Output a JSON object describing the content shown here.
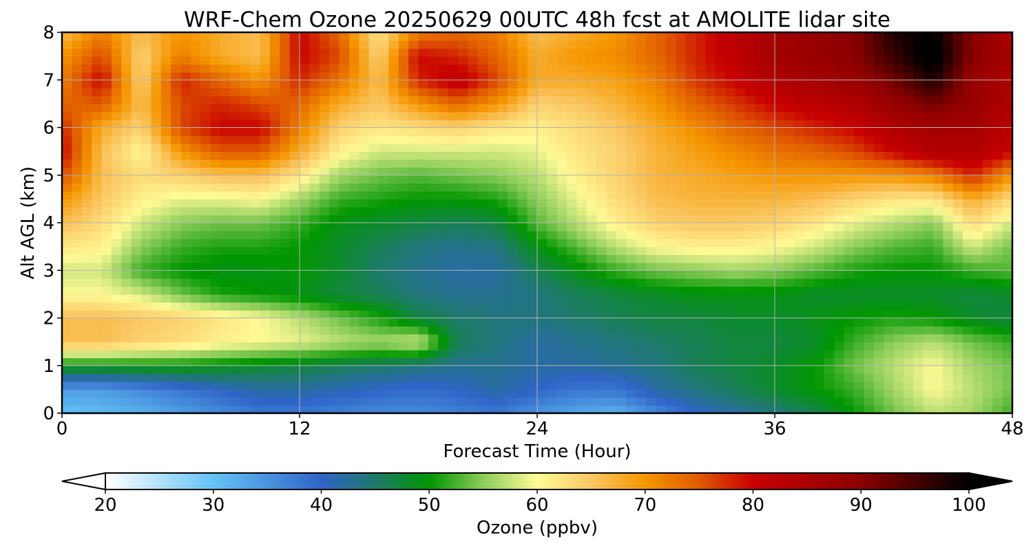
{
  "chart_data": {
    "type": "heatmap",
    "title": "WRF-Chem Ozone  20250629 00UTC 48h fcst at AMOLITE lidar site",
    "xlabel": "Forecast Time (Hour)",
    "ylabel": "Alt AGL (km)",
    "xlim": [
      0,
      48
    ],
    "ylim": [
      0,
      8
    ],
    "x_ticks": [
      "0",
      "12",
      "24",
      "36",
      "48"
    ],
    "y_ticks": [
      "0",
      "1",
      "2",
      "3",
      "4",
      "5",
      "6",
      "7",
      "8"
    ],
    "grid": true,
    "x": [
      0,
      2,
      4,
      6,
      8,
      10,
      12,
      14,
      16,
      18,
      20,
      22,
      24,
      26,
      28,
      30,
      32,
      34,
      36,
      38,
      40,
      42,
      44,
      46,
      48
    ],
    "y": [
      0,
      0.5,
      1,
      1.5,
      2,
      2.5,
      3,
      3.5,
      4,
      4.5,
      5,
      5.5,
      6,
      6.5,
      7,
      7.5,
      8
    ],
    "z_rows_by_altitude": [
      [
        30,
        31,
        32,
        34,
        36,
        38,
        38,
        37,
        36,
        36,
        37,
        38,
        35,
        33,
        32,
        36,
        40,
        42,
        44,
        46,
        50,
        54,
        57,
        56,
        52
      ],
      [
        34,
        34,
        36,
        38,
        40,
        42,
        42,
        41,
        40,
        39,
        40,
        42,
        40,
        38,
        38,
        42,
        44,
        46,
        48,
        50,
        52,
        56,
        60,
        57,
        54
      ],
      [
        50,
        50,
        50,
        50,
        49,
        48,
        47,
        46,
        45,
        44,
        43,
        43,
        42,
        42,
        43,
        44,
        46,
        47,
        48,
        50,
        54,
        57,
        60,
        56,
        54
      ],
      [
        66,
        66,
        64,
        63,
        61,
        60,
        59,
        57,
        56,
        58,
        46,
        44,
        42,
        43,
        44,
        45,
        46,
        47,
        47,
        48,
        52,
        55,
        57,
        54,
        52
      ],
      [
        66,
        66,
        65,
        64,
        62,
        60,
        57,
        54,
        51,
        47,
        45,
        44,
        44,
        45,
        46,
        47,
        47,
        48,
        48,
        49,
        50,
        51,
        50,
        48,
        47
      ],
      [
        60,
        60,
        58,
        54,
        51,
        50,
        49,
        47,
        46,
        44,
        43,
        43,
        44,
        46,
        47,
        48,
        49,
        49,
        49,
        48,
        48,
        48,
        48,
        47,
        48
      ],
      [
        58,
        58,
        52,
        50,
        49,
        49,
        50,
        48,
        45,
        43,
        42,
        42,
        46,
        49,
        52,
        54,
        55,
        56,
        55,
        53,
        51,
        50,
        50,
        52,
        53
      ],
      [
        62,
        61,
        55,
        52,
        51,
        51,
        50,
        48,
        46,
        44,
        43,
        44,
        49,
        53,
        57,
        60,
        61,
        61,
        60,
        58,
        55,
        53,
        52,
        58,
        54
      ],
      [
        66,
        63,
        58,
        55,
        54,
        54,
        52,
        49,
        48,
        47,
        46,
        47,
        53,
        57,
        61,
        64,
        65,
        65,
        64,
        62,
        59,
        57,
        55,
        63,
        58
      ],
      [
        70,
        65,
        61,
        59,
        59,
        60,
        56,
        52,
        51,
        50,
        50,
        51,
        55,
        59,
        63,
        66,
        67,
        67,
        67,
        66,
        64,
        62,
        62,
        68,
        63
      ],
      [
        76,
        66,
        63,
        64,
        66,
        66,
        62,
        56,
        54,
        53,
        54,
        55,
        57,
        61,
        64,
        67,
        68,
        69,
        70,
        70,
        70,
        70,
        72,
        78,
        70
      ],
      [
        80,
        66,
        60,
        70,
        75,
        75,
        68,
        61,
        58,
        58,
        58,
        58,
        59,
        62,
        64,
        67,
        69,
        71,
        73,
        74,
        76,
        80,
        84,
        84,
        80
      ],
      [
        78,
        68,
        64,
        76,
        80,
        80,
        72,
        64,
        62,
        63,
        64,
        62,
        61,
        63,
        65,
        68,
        71,
        74,
        76,
        78,
        80,
        84,
        86,
        86,
        82
      ],
      [
        74,
        75,
        66,
        76,
        78,
        76,
        74,
        68,
        65,
        70,
        74,
        70,
        64,
        65,
        67,
        70,
        74,
        77,
        80,
        82,
        84,
        88,
        92,
        88,
        84
      ],
      [
        72,
        80,
        64,
        78,
        74,
        70,
        78,
        73,
        66,
        78,
        82,
        76,
        68,
        68,
        69,
        72,
        77,
        80,
        84,
        86,
        88,
        92,
        98,
        88,
        84
      ],
      [
        70,
        76,
        64,
        72,
        68,
        66,
        80,
        76,
        64,
        80,
        78,
        74,
        68,
        70,
        71,
        74,
        78,
        82,
        86,
        88,
        90,
        96,
        102,
        90,
        86
      ],
      [
        66,
        72,
        66,
        70,
        68,
        66,
        80,
        74,
        62,
        72,
        74,
        72,
        66,
        68,
        70,
        74,
        78,
        82,
        86,
        88,
        90,
        98,
        100,
        90,
        84
      ]
    ],
    "colorbar": {
      "label": "Ozone  (ppbv)",
      "min": 20,
      "max": 100,
      "extend": "both",
      "ticks": [
        "20",
        "30",
        "40",
        "50",
        "60",
        "70",
        "80",
        "90",
        "100"
      ]
    }
  },
  "colors": {
    "stops": [
      {
        "v": 20,
        "c": "#ffffff"
      },
      {
        "v": 30,
        "c": "#64c3f5"
      },
      {
        "v": 40,
        "c": "#2f64c8"
      },
      {
        "v": 45,
        "c": "#1e7a6a"
      },
      {
        "v": 50,
        "c": "#009600"
      },
      {
        "v": 55,
        "c": "#8ccd5a"
      },
      {
        "v": 60,
        "c": "#fffa96"
      },
      {
        "v": 65,
        "c": "#fac864"
      },
      {
        "v": 70,
        "c": "#f59600"
      },
      {
        "v": 75,
        "c": "#e05a00"
      },
      {
        "v": 80,
        "c": "#c80000"
      },
      {
        "v": 90,
        "c": "#8c0000"
      },
      {
        "v": 100,
        "c": "#000000"
      }
    ]
  }
}
